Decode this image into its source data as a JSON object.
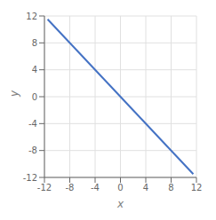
{
  "chart_data": {
    "type": "line",
    "x": [
      -11.5,
      11.5
    ],
    "values": [
      11.5,
      -11.5
    ],
    "color": "#4472c4",
    "xlim": [
      -12,
      12
    ],
    "ylim": [
      -12,
      12
    ],
    "xticks": [
      -12,
      -8,
      -4,
      0,
      4,
      8,
      12
    ],
    "yticks": [
      -12,
      -8,
      -4,
      0,
      4,
      8,
      12
    ],
    "xlabel": "x",
    "ylabel": "y",
    "grid": true
  }
}
